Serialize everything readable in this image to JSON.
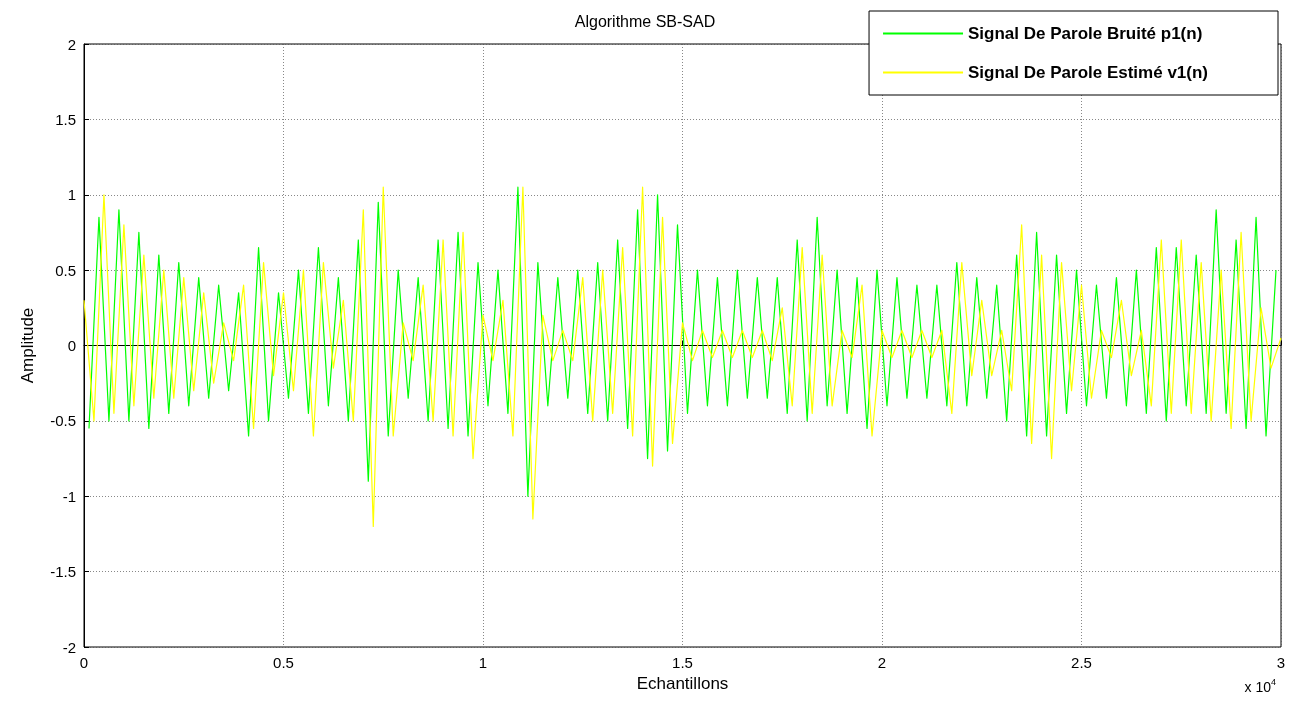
{
  "chart_data": {
    "type": "line",
    "title": "Algorithme SB-SAD",
    "xlabel": "Echantillons",
    "ylabel": "Amplitude",
    "annotations": [
      "x 10$^{4}$"
    ],
    "xlim": [
      0,
      3
    ],
    "xticks": [
      0,
      0.5,
      1,
      1.5,
      2,
      2.5,
      3
    ],
    "ylim": [
      -2,
      2
    ],
    "yticks": [
      -2,
      -1.5,
      -1,
      -0.5,
      0,
      0.5,
      1,
      1.5,
      2
    ],
    "grid": true,
    "legend": "top right",
    "marker": "none",
    "line_style": "solid",
    "series": [
      {
        "name": "Signal De Parole Bruité p1(n)",
        "color": "#00ff00",
        "x": [
          0.0125,
          0.0375,
          0.0625,
          0.0875,
          0.1125,
          0.1375,
          0.1625,
          0.1875,
          0.2125,
          0.2375,
          0.2625,
          0.2875,
          0.3125,
          0.3375,
          0.3625,
          0.3875,
          0.4125,
          0.4375,
          0.4625,
          0.4875,
          0.5125,
          0.5375,
          0.5625,
          0.5875,
          0.6125,
          0.6375,
          0.6625,
          0.6875,
          0.7125,
          0.7375,
          0.7625,
          0.7875,
          0.8125,
          0.8375,
          0.8625,
          0.8875,
          0.9125,
          0.9375,
          0.9625,
          0.9875,
          1.0125,
          1.0375,
          1.0625,
          1.0875,
          1.1125,
          1.1375,
          1.1625,
          1.1875,
          1.2125,
          1.2375,
          1.2625,
          1.2875,
          1.3125,
          1.3375,
          1.3625,
          1.3875,
          1.4125,
          1.4375,
          1.4625,
          1.4875,
          1.5125,
          1.5375,
          1.5625,
          1.5875,
          1.6125,
          1.6375,
          1.6625,
          1.6875,
          1.7125,
          1.7375,
          1.7625,
          1.7875,
          1.8125,
          1.8375,
          1.8625,
          1.8875,
          1.9125,
          1.9375,
          1.9625,
          1.9875,
          2.0125,
          2.0375,
          2.0625,
          2.0875,
          2.1125,
          2.1375,
          2.1625,
          2.1875,
          2.2125,
          2.2375,
          2.2625,
          2.2875,
          2.3125,
          2.3375,
          2.3625,
          2.3875,
          2.4125,
          2.4375,
          2.4625,
          2.4875,
          2.5125,
          2.5375,
          2.5625,
          2.5875,
          2.6125,
          2.6375,
          2.6625,
          2.6875,
          2.7125,
          2.7375,
          2.7625,
          2.7875,
          2.8125,
          2.8375,
          2.8625,
          2.8875,
          2.9125,
          2.9375,
          2.9625,
          2.9875
        ],
        "values": [
          -0.55,
          0.85,
          -0.5,
          0.9,
          -0.5,
          0.75,
          -0.55,
          0.6,
          -0.45,
          0.55,
          -0.4,
          0.45,
          -0.35,
          0.4,
          -0.3,
          0.35,
          -0.6,
          0.65,
          -0.5,
          0.35,
          -0.35,
          0.5,
          -0.45,
          0.65,
          -0.4,
          0.45,
          -0.5,
          0.7,
          -0.9,
          0.95,
          -0.6,
          0.5,
          -0.35,
          0.45,
          -0.5,
          0.7,
          -0.55,
          0.75,
          -0.6,
          0.55,
          -0.4,
          0.5,
          -0.45,
          1.05,
          -1.0,
          0.55,
          -0.4,
          0.45,
          -0.35,
          0.5,
          -0.45,
          0.55,
          -0.5,
          0.7,
          -0.55,
          0.9,
          -0.75,
          1.0,
          -0.7,
          0.8,
          -0.45,
          0.5,
          -0.4,
          0.45,
          -0.4,
          0.5,
          -0.35,
          0.45,
          -0.35,
          0.45,
          -0.45,
          0.7,
          -0.5,
          0.85,
          -0.4,
          0.5,
          -0.45,
          0.45,
          -0.55,
          0.5,
          -0.4,
          0.45,
          -0.35,
          0.4,
          -0.35,
          0.4,
          -0.4,
          0.55,
          -0.4,
          0.45,
          -0.35,
          0.4,
          -0.5,
          0.6,
          -0.6,
          0.75,
          -0.6,
          0.6,
          -0.45,
          0.5,
          -0.4,
          0.4,
          -0.35,
          0.45,
          -0.4,
          0.5,
          -0.45,
          0.65,
          -0.5,
          0.65,
          -0.4,
          0.6,
          -0.45,
          0.9,
          -0.45,
          0.7,
          -0.55,
          0.85,
          -0.6,
          0.5
        ]
      },
      {
        "name": "Signal De Parole Estimé v1(n)",
        "color": "#ffff00",
        "x": [
          0,
          0.025,
          0.05,
          0.075,
          0.1,
          0.125,
          0.15,
          0.175,
          0.2,
          0.225,
          0.25,
          0.275,
          0.3,
          0.325,
          0.35,
          0.375,
          0.4,
          0.425,
          0.45,
          0.475,
          0.5,
          0.525,
          0.55,
          0.575,
          0.6,
          0.625,
          0.65,
          0.675,
          0.7,
          0.725,
          0.75,
          0.775,
          0.8,
          0.825,
          0.85,
          0.875,
          0.9,
          0.925,
          0.95,
          0.975,
          1,
          1.025,
          1.05,
          1.075,
          1.1,
          1.125,
          1.15,
          1.175,
          1.2,
          1.225,
          1.25,
          1.275,
          1.3,
          1.325,
          1.35,
          1.375,
          1.4,
          1.425,
          1.45,
          1.475,
          1.5,
          1.525,
          1.55,
          1.575,
          1.6,
          1.625,
          1.65,
          1.675,
          1.7,
          1.725,
          1.75,
          1.775,
          1.8,
          1.825,
          1.85,
          1.875,
          1.9,
          1.925,
          1.95,
          1.975,
          2,
          2.025,
          2.05,
          2.075,
          2.1,
          2.125,
          2.15,
          2.175,
          2.2,
          2.225,
          2.25,
          2.275,
          2.3,
          2.325,
          2.35,
          2.375,
          2.4,
          2.425,
          2.45,
          2.475,
          2.5,
          2.525,
          2.55,
          2.575,
          2.6,
          2.625,
          2.65,
          2.675,
          2.7,
          2.725,
          2.75,
          2.775,
          2.8,
          2.825,
          2.85,
          2.875,
          2.9,
          2.925,
          2.95,
          2.975,
          3
        ],
        "values": [
          0.3,
          -0.5,
          1.0,
          -0.45,
          0.8,
          -0.4,
          0.6,
          -0.35,
          0.5,
          -0.35,
          0.45,
          -0.3,
          0.35,
          -0.25,
          0.15,
          -0.1,
          0.4,
          -0.55,
          0.55,
          -0.2,
          0.35,
          -0.3,
          0.5,
          -0.6,
          0.55,
          -0.15,
          0.3,
          -0.5,
          0.9,
          -1.2,
          1.05,
          -0.6,
          0.15,
          -0.1,
          0.4,
          -0.5,
          0.7,
          -0.6,
          0.75,
          -0.75,
          0.2,
          -0.1,
          0.3,
          -0.6,
          1.05,
          -1.15,
          0.2,
          -0.1,
          0.1,
          -0.1,
          0.45,
          -0.5,
          0.5,
          -0.45,
          0.65,
          -0.6,
          1.05,
          -0.8,
          0.85,
          -0.65,
          0.15,
          -0.1,
          0.1,
          -0.08,
          0.1,
          -0.08,
          0.1,
          -0.08,
          0.1,
          -0.1,
          0.25,
          -0.4,
          0.65,
          -0.45,
          0.6,
          -0.4,
          0.1,
          -0.08,
          0.4,
          -0.6,
          0.1,
          -0.08,
          0.1,
          -0.08,
          0.1,
          -0.08,
          0.1,
          -0.45,
          0.55,
          -0.2,
          0.3,
          -0.2,
          0.1,
          -0.3,
          0.8,
          -0.65,
          0.6,
          -0.75,
          0.55,
          -0.3,
          0.4,
          -0.35,
          0.1,
          -0.08,
          0.3,
          -0.2,
          0.1,
          -0.4,
          0.7,
          -0.45,
          0.7,
          -0.45,
          0.55,
          -0.5,
          0.5,
          -0.55,
          0.75,
          -0.5,
          0.25,
          -0.15,
          0.05
        ]
      }
    ]
  }
}
